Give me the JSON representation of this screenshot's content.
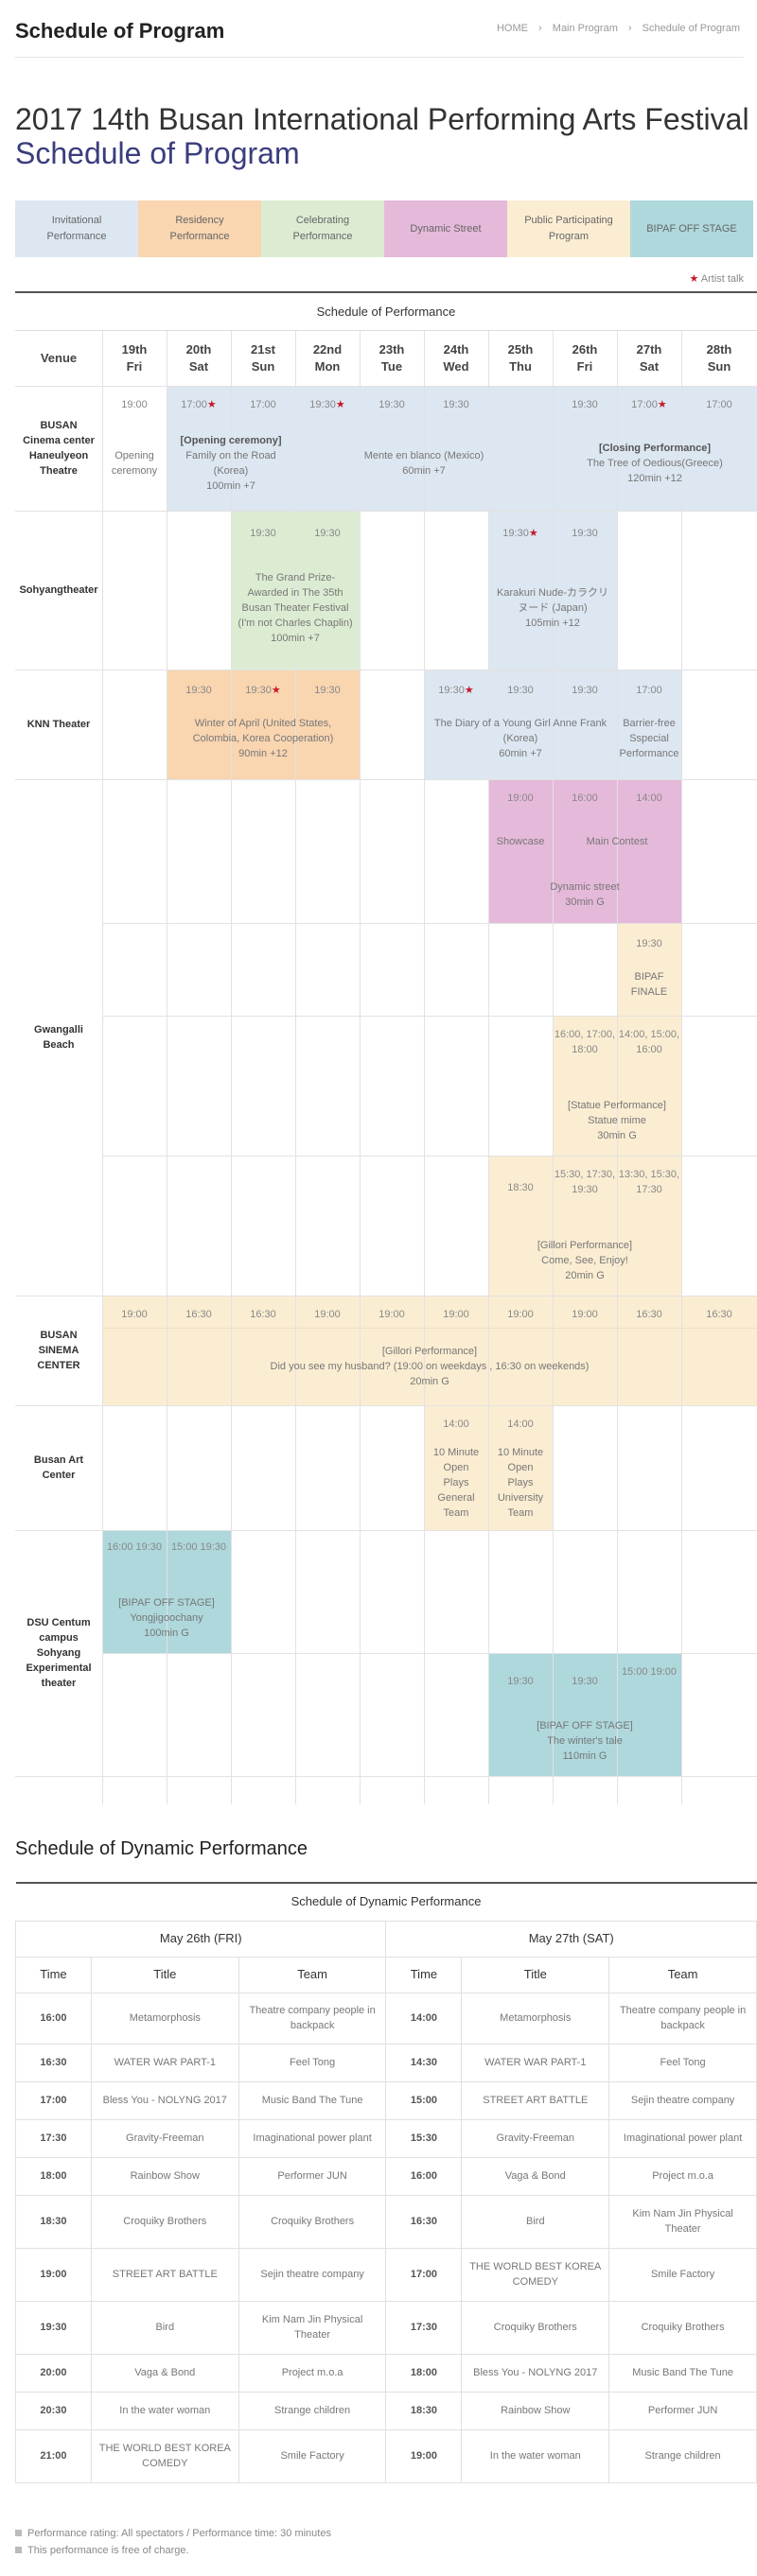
{
  "page_title": "Schedule of Program",
  "breadcrumb": {
    "home": "HOME",
    "sep_icon": "chevron-right-icon",
    "main": "Main Program",
    "current": "Schedule of Program"
  },
  "title": {
    "line1": "2017 14th Busan International Performing Arts Festival",
    "line2": "Schedule of Program"
  },
  "legend": [
    {
      "label": "Invitational Performance",
      "color": "#dde7f1"
    },
    {
      "label": "Residency Performance",
      "color": "#f9d5b0"
    },
    {
      "label": "Celebrating Performance",
      "color": "#dcecd2"
    },
    {
      "label": "Dynamic Street",
      "color": "#e5b9da"
    },
    {
      "label": "Public Participating Program",
      "color": "#fbedd2"
    },
    {
      "label": "BIPAF OFF STAGE",
      "color": "#aed8dc"
    }
  ],
  "artist_talk": {
    "star": "★",
    "label": "Artist talk"
  },
  "schedule": {
    "caption": "Schedule of Performance",
    "venue_header": "Venue",
    "days": [
      {
        "num": "19th",
        "dow": "Fri"
      },
      {
        "num": "20th",
        "dow": "Sat"
      },
      {
        "num": "21st",
        "dow": "Sun"
      },
      {
        "num": "22nd",
        "dow": "Mon"
      },
      {
        "num": "23th",
        "dow": "Tue"
      },
      {
        "num": "24th",
        "dow": "Wed"
      },
      {
        "num": "25th",
        "dow": "Thu"
      },
      {
        "num": "26th",
        "dow": "Fri"
      },
      {
        "num": "27th",
        "dow": "Sat"
      },
      {
        "num": "28th",
        "dow": "Sun"
      }
    ],
    "venues": [
      "BUSAN Cinema center Haneulyeon Theatre",
      "Sohyangtheater",
      "KNN Theater",
      "Gwangalli Beach",
      "BUSAN SINEMA CENTER",
      "Busan Art Center",
      "DSU Centum campus Sohyang Experimental theater"
    ],
    "times": {
      "c_d0": "19:00",
      "c_d1": "17:00",
      "c_d2": "17:00",
      "c_d3": "19:30",
      "c_d4": "19:30",
      "c_d5": "19:30",
      "c_d7": "19:30",
      "c_d8": "17:00",
      "c_d9": "17:00",
      "s_d2": "19:30",
      "s_d3": "19:30",
      "s_d6": "19:30",
      "s_d7": "19:30",
      "k_d1": "19:30",
      "k_d2": "19:30",
      "k_d3": "19:30",
      "k_d5": "19:30",
      "k_d6": "19:30",
      "k_d7": "19:30",
      "k_d8": "17:00",
      "g_d6": "19:00",
      "g_d7": "16:00",
      "g_d8": "14:00",
      "g2_d8": "19:30",
      "g3_d7": "16:00, 17:00, 18:00",
      "g3_d8": "14:00, 15:00, 16:00",
      "g4_d6": "18:30",
      "g4_d7": "15:30, 17:30, 19:30",
      "g4_d8": "13:30, 15:30, 17:30",
      "b_d0": "19:00",
      "b_d1": "16:30",
      "b_d2": "16:30",
      "b_d3": "19:00",
      "b_d4": "19:00",
      "b_d5": "19:00",
      "b_d6": "19:00",
      "b_d7": "19:00",
      "b_d8": "16:30",
      "b_d9": "16:30",
      "a_d5": "14:00",
      "a_d6": "14:00",
      "u_d0": "16:00 19:30",
      "u_d1": "15:00 19:30",
      "u2_d6": "19:30",
      "u2_d7": "19:30",
      "u2_d8": "15:00 19:00"
    },
    "star": "★",
    "events": {
      "opening_ceremony": "Opening ceremony",
      "family_title": "[Opening ceremony]",
      "family_sub": "Family on the Road (Korea)",
      "family_dur": "100min +7",
      "mente": "Mente en blanco (Mexico)",
      "mente_dur": "60min +7",
      "closing_title": "[Closing Performance]",
      "closing_sub": "The Tree of Oedious(Greece)",
      "closing_dur": "120min +12",
      "grand_prize": "The Grand Prize-Awarded in The 35th Busan Theater Festival (I'm not Charles Chaplin)",
      "grand_dur": "100min +7",
      "karakuri": "Karakuri Nude-カラクリヌード (Japan)",
      "karakuri_dur": "105min +12",
      "winter": "Winter of April (United States, Colombia, Korea Cooperation)",
      "winter_dur": "90min +12",
      "diary": "The Diary of a Young Girl Anne Frank (Korea)",
      "diary_dur": "60min +7",
      "barrier": "Barrier-free Sspecial Performance",
      "showcase": "Showcase",
      "main_contest": "Main Contest",
      "dynamic_street": "Dynamic street",
      "dynamic_dur": "30min G",
      "bipaf_finale": "BIPAF FINALE",
      "statue_title": "[Statue Performance]",
      "statue_sub": "Statue mime",
      "statue_dur": "30min G",
      "gillori_title": "[Gillori Performance]",
      "gillori_sub": "Come, See, Enjoy!",
      "gillori_dur": "20min G",
      "husband_title": "[Gillori Performance]",
      "husband_sub": "Did you see my husband? (19:00 on weekdays , 16:30 on weekends)",
      "husband_dur": "20min G",
      "ten_min_general": "10 Minute Open Plays General Team",
      "ten_min_univ": "10 Minute Open Plays University Team",
      "offstage1_title": "[BIPAF OFF STAGE]",
      "offstage1_sub": "Yongjigoochany",
      "offstage1_dur": "100min G",
      "offstage2_title": "[BIPAF OFF STAGE]",
      "offstage2_sub": "The winter's tale",
      "offstage2_dur": "110min G"
    }
  },
  "dynamic": {
    "section_title": "Schedule of Dynamic Performance",
    "caption": "Schedule of Dynamic Performance",
    "day1": "May 26th (FRI)",
    "day2": "May 27th (SAT)",
    "col_time": "Time",
    "col_title": "Title",
    "col_team": "Team",
    "rows": [
      {
        "t1": "16:00",
        "ti1": "Metamorphosis",
        "te1": "Theatre company people in backpack",
        "t2": "14:00",
        "ti2": "Metamorphosis",
        "te2": "Theatre company people in backpack"
      },
      {
        "t1": "16:30",
        "ti1": "WATER WAR PART-1",
        "te1": "Feel Tong",
        "t2": "14:30",
        "ti2": "WATER WAR PART-1",
        "te2": "Feel Tong"
      },
      {
        "t1": "17:00",
        "ti1": "Bless You - NOLYNG 2017",
        "te1": "Music Band The Tune",
        "t2": "15:00",
        "ti2": "STREET ART BATTLE",
        "te2": "Sejin theatre company"
      },
      {
        "t1": "17:30",
        "ti1": "Gravity-Freeman",
        "te1": "Imaginational power plant",
        "t2": "15:30",
        "ti2": "Gravity-Freeman",
        "te2": "Imaginational power plant"
      },
      {
        "t1": "18:00",
        "ti1": "Rainbow Show",
        "te1": "Performer JUN",
        "t2": "16:00",
        "ti2": "Vaga & Bond",
        "te2": "Project m.o.a"
      },
      {
        "t1": "18:30",
        "ti1": "Croquiky Brothers",
        "te1": "Croquiky Brothers",
        "t2": "16:30",
        "ti2": "Bird",
        "te2": "Kim Nam Jin Physical Theater"
      },
      {
        "t1": "19:00",
        "ti1": "STREET ART BATTLE",
        "te1": "Sejin theatre company",
        "t2": "17:00",
        "ti2": "THE WORLD BEST KOREA COMEDY",
        "te2": "Smile Factory"
      },
      {
        "t1": "19:30",
        "ti1": "Bird",
        "te1": "Kim Nam Jin Physical Theater",
        "t2": "17:30",
        "ti2": "Croquiky Brothers",
        "te2": "Croquiky Brothers"
      },
      {
        "t1": "20:00",
        "ti1": "Vaga & Bond",
        "te1": "Project m.o.a",
        "t2": "18:00",
        "ti2": "Bless You - NOLYNG 2017",
        "te2": "Music Band The Tune"
      },
      {
        "t1": "20:30",
        "ti1": "In the water woman",
        "te1": "Strange children",
        "t2": "18:30",
        "ti2": "Rainbow Show",
        "te2": "Performer JUN"
      },
      {
        "t1": "21:00",
        "ti1": "THE WORLD BEST KOREA COMEDY",
        "te1": "Smile Factory",
        "t2": "19:00",
        "ti2": "In the water woman",
        "te2": "Strange children"
      }
    ]
  },
  "notes": [
    "Performance rating: All spectators / Performance time: 30 minutes",
    "This performance is free of charge."
  ]
}
